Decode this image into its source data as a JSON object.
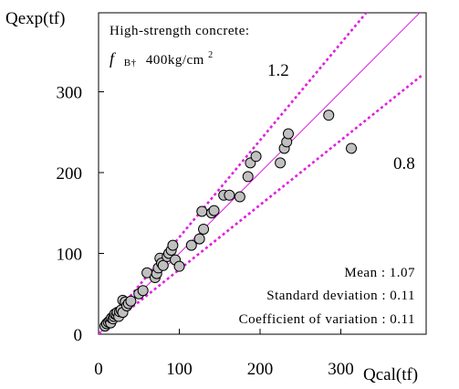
{
  "chart_data": {
    "type": "scatter",
    "title": "",
    "xlabel": "Qcal(tf)",
    "ylabel": "Qexp(tf)",
    "xlim": [
      0,
      400
    ],
    "ylim": [
      0,
      400
    ],
    "x_ticks": [
      "0",
      "100",
      "200",
      "300"
    ],
    "y_ticks": [
      "0",
      "100",
      "200",
      "300"
    ],
    "grid": false,
    "legend": "none",
    "annotation_title": "High-strength concrete:",
    "annotation_fc_symbol": "f",
    "annotation_fc_sub": "B†",
    "annotation_fc_value": "400kg/cm",
    "annotation_fc_sup": "2",
    "reference_lines": [
      {
        "label": "",
        "slope": 1.0,
        "style": "solid",
        "color": "#e020e0"
      },
      {
        "label": "1.2",
        "slope": 1.2,
        "style": "dotted",
        "color": "#e020e0"
      },
      {
        "label": "0.8",
        "slope": 0.8,
        "style": "dotted",
        "color": "#e020e0"
      }
    ],
    "stats": [
      "Mean : 1.07",
      "Standard deviation : 0.11",
      "Coefficient of variation : 0.11"
    ],
    "points": [
      [
        8,
        10
      ],
      [
        10,
        13
      ],
      [
        12,
        15
      ],
      [
        14,
        17
      ],
      [
        15,
        14
      ],
      [
        16,
        20
      ],
      [
        18,
        19
      ],
      [
        19,
        22
      ],
      [
        20,
        25
      ],
      [
        22,
        24
      ],
      [
        23,
        27
      ],
      [
        25,
        22
      ],
      [
        26,
        28
      ],
      [
        28,
        30
      ],
      [
        30,
        27
      ],
      [
        30,
        42
      ],
      [
        33,
        40
      ],
      [
        35,
        35
      ],
      [
        37,
        38
      ],
      [
        40,
        41
      ],
      [
        50,
        50
      ],
      [
        55,
        54
      ],
      [
        60,
        76
      ],
      [
        70,
        70
      ],
      [
        72,
        75
      ],
      [
        74,
        82
      ],
      [
        76,
        94
      ],
      [
        78,
        88
      ],
      [
        80,
        85
      ],
      [
        85,
        96
      ],
      [
        87,
        100
      ],
      [
        90,
        104
      ],
      [
        92,
        110
      ],
      [
        95,
        92
      ],
      [
        100,
        84
      ],
      [
        115,
        110
      ],
      [
        125,
        118
      ],
      [
        128,
        152
      ],
      [
        130,
        130
      ],
      [
        140,
        150
      ],
      [
        143,
        153
      ],
      [
        155,
        172
      ],
      [
        162,
        172
      ],
      [
        175,
        170
      ],
      [
        185,
        195
      ],
      [
        188,
        212
      ],
      [
        195,
        220
      ],
      [
        225,
        212
      ],
      [
        230,
        230
      ],
      [
        233,
        238
      ],
      [
        235,
        248
      ],
      [
        285,
        271
      ],
      [
        313,
        230
      ]
    ],
    "marker_fill": "#c0c0c0",
    "marker_stroke": "#000000"
  }
}
